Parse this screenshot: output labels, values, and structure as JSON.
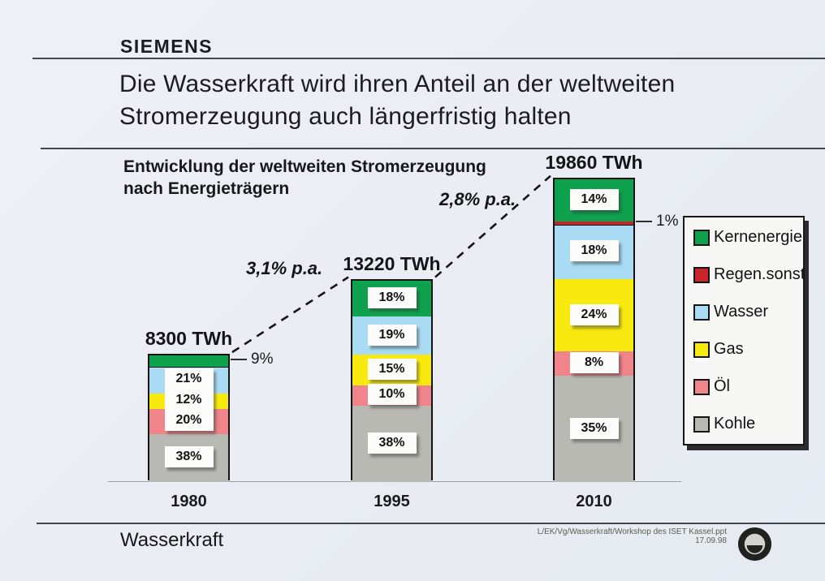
{
  "brand": "SIEMENS",
  "title": {
    "line1": "Die Wasserkraft wird ihren Anteil an der weltweiten",
    "line2": "Stromerzeugung auch  längerfristig halten"
  },
  "chart": {
    "title_line1": "Entwicklung der weltweiten Stromerzeugung",
    "title_line2": "nach Energieträgern"
  },
  "chart_data": {
    "type": "bar",
    "stacked": true,
    "categories": [
      "1980",
      "1995",
      "2010"
    ],
    "totals_twh": [
      8300,
      13220,
      19860
    ],
    "total_labels": [
      "8300 TWh",
      "13220 TWh",
      "19860 TWh"
    ],
    "unit": "%",
    "series": [
      {
        "name": "Kernenergie",
        "color": "#0ea24e",
        "values": [
          9,
          18,
          14
        ]
      },
      {
        "name": "Regen.sonst",
        "color": "#c8242b",
        "values": [
          0,
          0,
          1
        ]
      },
      {
        "name": "Wasser",
        "color": "#a9dcf4",
        "values": [
          21,
          19,
          18
        ]
      },
      {
        "name": "Gas",
        "color": "#f8ea0e",
        "values": [
          12,
          15,
          24
        ]
      },
      {
        "name": "Öl",
        "color": "#ef858b",
        "values": [
          20,
          10,
          8
        ]
      },
      {
        "name": "Kohle",
        "color": "#b8b9b3",
        "values": [
          38,
          38,
          35
        ]
      }
    ],
    "segment_labels": [
      [
        null,
        null,
        "21%",
        "12%",
        "20%",
        "38%"
      ],
      [
        "18%",
        null,
        "19%",
        "15%",
        "10%",
        "38%"
      ],
      [
        "14%",
        null,
        "18%",
        "24%",
        "8%",
        "35%"
      ]
    ],
    "outside_callouts": [
      {
        "text": "9%",
        "category_index": 0,
        "series": "Kernenergie"
      },
      {
        "text": "1%",
        "category_index": 2,
        "series": "Regen.sonst"
      }
    ],
    "growth_annotations": [
      {
        "text": "3,1% p.a.",
        "from": "1980",
        "to": "1995"
      },
      {
        "text": "2,8% p.a.",
        "from": "1995",
        "to": "2010"
      }
    ],
    "legend_position": "right",
    "grid": false
  },
  "legend": {
    "items": [
      {
        "label": "Kernenergie",
        "color": "#0ea24e"
      },
      {
        "label": "Regen.sonst",
        "color": "#c8242b"
      },
      {
        "label": "Wasser",
        "color": "#a9dcf4"
      },
      {
        "label": "Gas",
        "color": "#f8ea0e"
      },
      {
        "label": "Öl",
        "color": "#ef858b"
      },
      {
        "label": "Kohle",
        "color": "#b8b9b3"
      }
    ]
  },
  "footer": {
    "left": "Wasserkraft",
    "path": "L/EK/Vg/Wasserkraft/Workshop des ISET Kassel.ppt",
    "date": "17.09.98"
  }
}
